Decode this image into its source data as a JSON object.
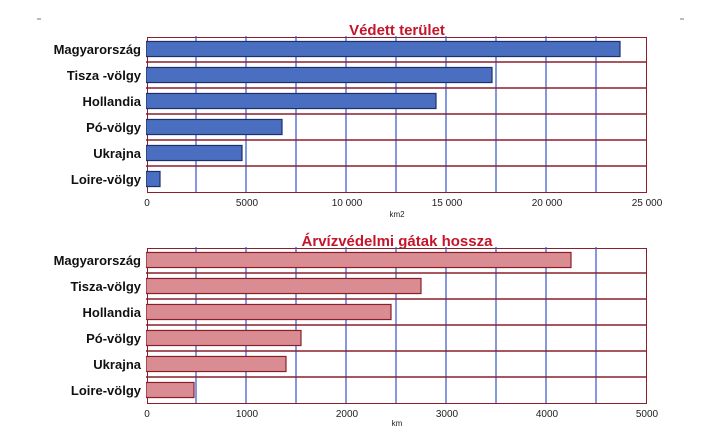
{
  "chart_data": [
    {
      "type": "bar",
      "orientation": "horizontal",
      "title": "Védett terület",
      "xlabel": "km2",
      "categories": [
        "Magyarország",
        "Tisza -völgy",
        "Hollandia",
        "Pó-völgy",
        "Ukrajna",
        "Loire-völgy"
      ],
      "values": [
        23700,
        17300,
        14500,
        6800,
        4800,
        700
      ],
      "xlim": [
        0,
        25000
      ],
      "ticks": [
        "0",
        "5000",
        "10 000",
        "15 000",
        "20 000",
        "25 000"
      ],
      "tick_values": [
        0,
        5000,
        10000,
        15000,
        20000,
        25000
      ],
      "grid_values": [
        2500,
        5000,
        7500,
        10000,
        12500,
        15000,
        17500,
        20000,
        22500
      ],
      "bar_color": "#4a6fc0",
      "bar_edge": "#1f2f6b",
      "grid_color": "#3355cc",
      "frame_color": "#8b1e2a"
    },
    {
      "type": "bar",
      "orientation": "horizontal",
      "title": "Árvízvédelmi gátak hossza",
      "xlabel": "km",
      "categories": [
        "Magyarország",
        "Tisza-völgy",
        "Hollandia",
        "Pó-völgy",
        "Ukrajna",
        "Loire-völgy"
      ],
      "values": [
        4250,
        2750,
        2450,
        1550,
        1400,
        480
      ],
      "xlim": [
        0,
        5000
      ],
      "ticks": [
        "0",
        "1000",
        "2000",
        "3000",
        "4000",
        "5000"
      ],
      "tick_values": [
        0,
        1000,
        2000,
        3000,
        4000,
        5000
      ],
      "grid_values": [
        500,
        1000,
        1500,
        2000,
        2500,
        3000,
        3500,
        4000,
        4500
      ],
      "bar_color": "#d98c92",
      "bar_edge": "#8b1e2a",
      "grid_color": "#3355cc",
      "frame_color": "#8b1e2a"
    }
  ]
}
